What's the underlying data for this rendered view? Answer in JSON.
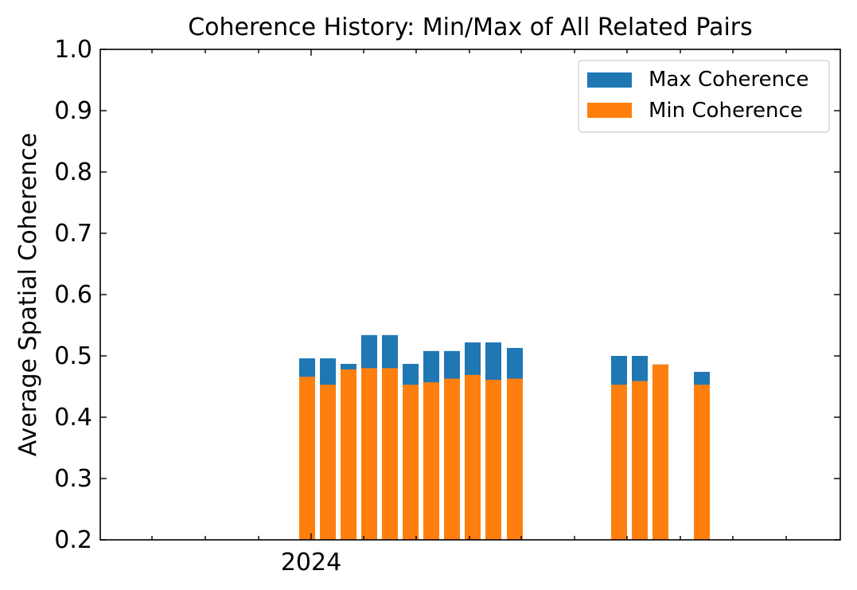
{
  "chart_data": {
    "type": "bar",
    "title": "Coherence History: Min/Max of All Related Pairs",
    "xlabel": "",
    "ylabel": "Average Spatial Coherence",
    "ylim": [
      0.2,
      1.0
    ],
    "yticks": [
      "0.2",
      "0.3",
      "0.4",
      "0.5",
      "0.6",
      "0.7",
      "0.8",
      "0.9",
      "1.0"
    ],
    "xtick_labels": [
      "2024"
    ],
    "grid": false,
    "legend_position": "top-right",
    "stacked": false,
    "colors": {
      "max": "#1f77b4",
      "min": "#ff7f0e"
    },
    "series": [
      {
        "name": "Max Coherence",
        "values": [
          0.496,
          0.496,
          0.487,
          0.534,
          0.534,
          0.487,
          0.508,
          0.508,
          0.522,
          0.522,
          0.513,
          0.5,
          0.5,
          0.486,
          0.474
        ]
      },
      {
        "name": "Min Coherence",
        "values": [
          0.466,
          0.453,
          0.478,
          0.48,
          0.48,
          0.453,
          0.457,
          0.463,
          0.469,
          0.461,
          0.463,
          0.453,
          0.459,
          0.486,
          0.453
        ]
      }
    ]
  }
}
